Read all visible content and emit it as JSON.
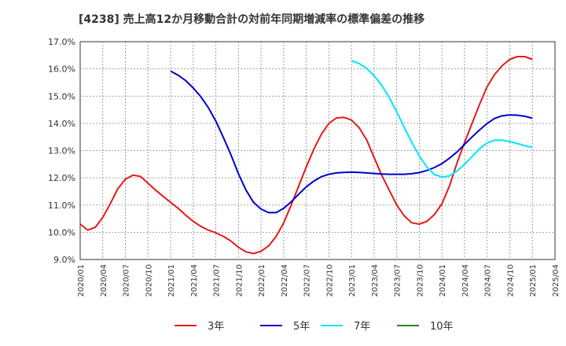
{
  "chart_data": {
    "type": "line",
    "title": "[4238]  売上高12か月移動合計の対前年同期増減率の標準偏差の推移",
    "xlabel": "",
    "ylabel": "",
    "x_ticks": [
      "2020/01",
      "2020/04",
      "2020/07",
      "2020/10",
      "2021/01",
      "2021/04",
      "2021/07",
      "2021/10",
      "2022/01",
      "2022/04",
      "2022/07",
      "2022/10",
      "2023/01",
      "2023/04",
      "2023/07",
      "2023/10",
      "2024/01",
      "2024/04",
      "2024/07",
      "2024/10",
      "2025/01",
      "2025/04"
    ],
    "y_ticks": [
      "9.0%",
      "10.0%",
      "11.0%",
      "12.0%",
      "13.0%",
      "14.0%",
      "15.0%",
      "16.0%",
      "17.0%"
    ],
    "ylim": [
      9.0,
      17.0
    ],
    "xlim": [
      "2020/01",
      "2025/04"
    ],
    "grid": true,
    "legend_position": "bottom",
    "series": [
      {
        "name": "3年",
        "color": "#e31a1c",
        "start": "2020/01",
        "values": [
          10.3,
          10.08,
          10.18,
          10.55,
          11.05,
          11.6,
          11.95,
          12.1,
          12.05,
          11.8,
          11.55,
          11.32,
          11.1,
          10.88,
          10.63,
          10.4,
          10.22,
          10.08,
          9.98,
          9.85,
          9.68,
          9.45,
          9.28,
          9.22,
          9.3,
          9.5,
          9.85,
          10.35,
          11.0,
          11.7,
          12.4,
          13.05,
          13.6,
          14.0,
          14.2,
          14.22,
          14.12,
          13.85,
          13.4,
          12.75,
          12.1,
          11.55,
          11.0,
          10.6,
          10.35,
          10.3,
          10.4,
          10.65,
          11.05,
          11.7,
          12.55,
          13.3,
          14.0,
          14.7,
          15.35,
          15.8,
          16.12,
          16.35,
          16.45,
          16.45,
          16.35
        ]
      },
      {
        "name": "5年",
        "color": "#0000cc",
        "start": "2021/01",
        "values": [
          15.92,
          15.77,
          15.57,
          15.3,
          14.98,
          14.58,
          14.08,
          13.48,
          12.85,
          12.15,
          11.55,
          11.1,
          10.85,
          10.72,
          10.72,
          10.88,
          11.12,
          11.4,
          11.67,
          11.88,
          12.04,
          12.13,
          12.18,
          12.2,
          12.21,
          12.2,
          12.18,
          12.16,
          12.14,
          12.13,
          12.13,
          12.13,
          12.15,
          12.19,
          12.27,
          12.38,
          12.52,
          12.72,
          12.95,
          13.23,
          13.5,
          13.76,
          14.0,
          14.18,
          14.28,
          14.31,
          14.3,
          14.26,
          14.19
        ]
      },
      {
        "name": "7年",
        "color": "#00e5ff",
        "start": "2023/01",
        "values": [
          16.3,
          16.2,
          16.02,
          15.75,
          15.4,
          14.95,
          14.42,
          13.85,
          13.3,
          12.8,
          12.4,
          12.12,
          12.03,
          12.07,
          12.25,
          12.5,
          12.78,
          13.07,
          13.28,
          13.38,
          13.38,
          13.33,
          13.26,
          13.18,
          13.12
        ]
      },
      {
        "name": "10年",
        "color": "#228b22",
        "start": "",
        "values": []
      }
    ]
  }
}
